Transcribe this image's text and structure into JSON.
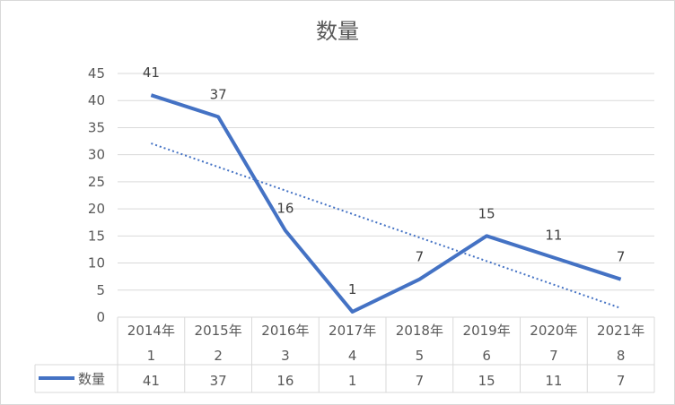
{
  "chart_data": {
    "type": "line",
    "title": "数量",
    "categories": [
      {
        "year": "2014年",
        "index": "1"
      },
      {
        "year": "2015年",
        "index": "2"
      },
      {
        "year": "2016年",
        "index": "3"
      },
      {
        "year": "2017年",
        "index": "4"
      },
      {
        "year": "2018年",
        "index": "5"
      },
      {
        "year": "2019年",
        "index": "6"
      },
      {
        "year": "2020年",
        "index": "7"
      },
      {
        "year": "2021年",
        "index": "8"
      }
    ],
    "series": [
      {
        "name": "数量",
        "values": [
          41,
          37,
          16,
          1,
          7,
          15,
          11,
          7
        ],
        "color": "#4472c4"
      }
    ],
    "trendline": {
      "type": "linear",
      "style": "dotted",
      "color": "#4472c4"
    },
    "ylim": [
      0,
      45
    ],
    "yticks": [
      0,
      5,
      10,
      15,
      20,
      25,
      30,
      35,
      40,
      45
    ],
    "data_labels": true,
    "data_table": true,
    "grid": true
  }
}
